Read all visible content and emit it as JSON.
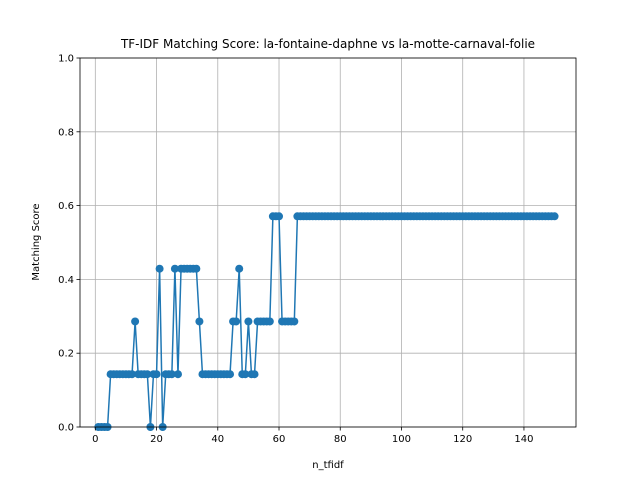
{
  "chart_data": {
    "type": "line",
    "title": "TF-IDF Matching Score: la-fontaine-daphne vs la-motte-carnaval-folie",
    "xlabel": "n_tfidf",
    "ylabel": "Matching Score",
    "xlim": [
      -5,
      157
    ],
    "ylim": [
      0,
      1
    ],
    "xticks": [
      0,
      20,
      40,
      60,
      80,
      100,
      120,
      140
    ],
    "yticks": [
      0.0,
      0.2,
      0.4,
      0.6,
      0.8,
      1.0
    ],
    "xtick_labels": [
      "0",
      "20",
      "40",
      "60",
      "80",
      "100",
      "120",
      "140"
    ],
    "ytick_labels": [
      "0.0",
      "0.2",
      "0.4",
      "0.6",
      "0.8",
      "1.0"
    ],
    "grid": true,
    "marker": "circle",
    "color": "#1f77b4",
    "series": [
      {
        "x": [
          1,
          2,
          3,
          4,
          5,
          6,
          7,
          8,
          9,
          10,
          11,
          12,
          13,
          14,
          15,
          16,
          17,
          18,
          19,
          20,
          21,
          22,
          23,
          24,
          25,
          26,
          27,
          28,
          29,
          30,
          31,
          32,
          33,
          34,
          35,
          36,
          37,
          38,
          39,
          40,
          41,
          42,
          43,
          44,
          45,
          46,
          47,
          48,
          49,
          50,
          51,
          52,
          53,
          54,
          55,
          56,
          57,
          58,
          59,
          60,
          61,
          62,
          63,
          64,
          65,
          66,
          67,
          68,
          69,
          70,
          71,
          72,
          73,
          74,
          75,
          76,
          77,
          78,
          79,
          80,
          81,
          82,
          83,
          84,
          85,
          86,
          87,
          88,
          89,
          90,
          91,
          92,
          93,
          94,
          95,
          96,
          97,
          98,
          99,
          100,
          101,
          102,
          103,
          104,
          105,
          106,
          107,
          108,
          109,
          110,
          111,
          112,
          113,
          114,
          115,
          116,
          117,
          118,
          119,
          120,
          121,
          122,
          123,
          124,
          125,
          126,
          127,
          128,
          129,
          130,
          131,
          132,
          133,
          134,
          135,
          136,
          137,
          138,
          139,
          140,
          141,
          142,
          143,
          144,
          145,
          146,
          147,
          148,
          149,
          150
        ],
        "values": [
          0,
          0,
          0,
          0,
          0.143,
          0.143,
          0.143,
          0.143,
          0.143,
          0.143,
          0.143,
          0.143,
          0.286,
          0.143,
          0.143,
          0.143,
          0.143,
          0,
          0.143,
          0.143,
          0.429,
          0,
          0.143,
          0.143,
          0.143,
          0.429,
          0.143,
          0.429,
          0.429,
          0.429,
          0.429,
          0.429,
          0.429,
          0.286,
          0.143,
          0.143,
          0.143,
          0.143,
          0.143,
          0.143,
          0.143,
          0.143,
          0.143,
          0.143,
          0.286,
          0.286,
          0.429,
          0.143,
          0.143,
          0.286,
          0.143,
          0.143,
          0.286,
          0.286,
          0.286,
          0.286,
          0.286,
          0.571,
          0.571,
          0.571,
          0.286,
          0.286,
          0.286,
          0.286,
          0.286,
          0.571,
          0.571,
          0.571,
          0.571,
          0.571,
          0.571,
          0.571,
          0.571,
          0.571,
          0.571,
          0.571,
          0.571,
          0.571,
          0.571,
          0.571,
          0.571,
          0.571,
          0.571,
          0.571,
          0.571,
          0.571,
          0.571,
          0.571,
          0.571,
          0.571,
          0.571,
          0.571,
          0.571,
          0.571,
          0.571,
          0.571,
          0.571,
          0.571,
          0.571,
          0.571,
          0.571,
          0.571,
          0.571,
          0.571,
          0.571,
          0.571,
          0.571,
          0.571,
          0.571,
          0.571,
          0.571,
          0.571,
          0.571,
          0.571,
          0.571,
          0.571,
          0.571,
          0.571,
          0.571,
          0.571,
          0.571,
          0.571,
          0.571,
          0.571,
          0.571,
          0.571,
          0.571,
          0.571,
          0.571,
          0.571,
          0.571,
          0.571,
          0.571,
          0.571,
          0.571,
          0.571,
          0.571,
          0.571,
          0.571,
          0.571,
          0.571,
          0.571,
          0.571,
          0.571,
          0.571,
          0.571,
          0.571,
          0.571,
          0.571,
          0.571
        ]
      }
    ]
  }
}
